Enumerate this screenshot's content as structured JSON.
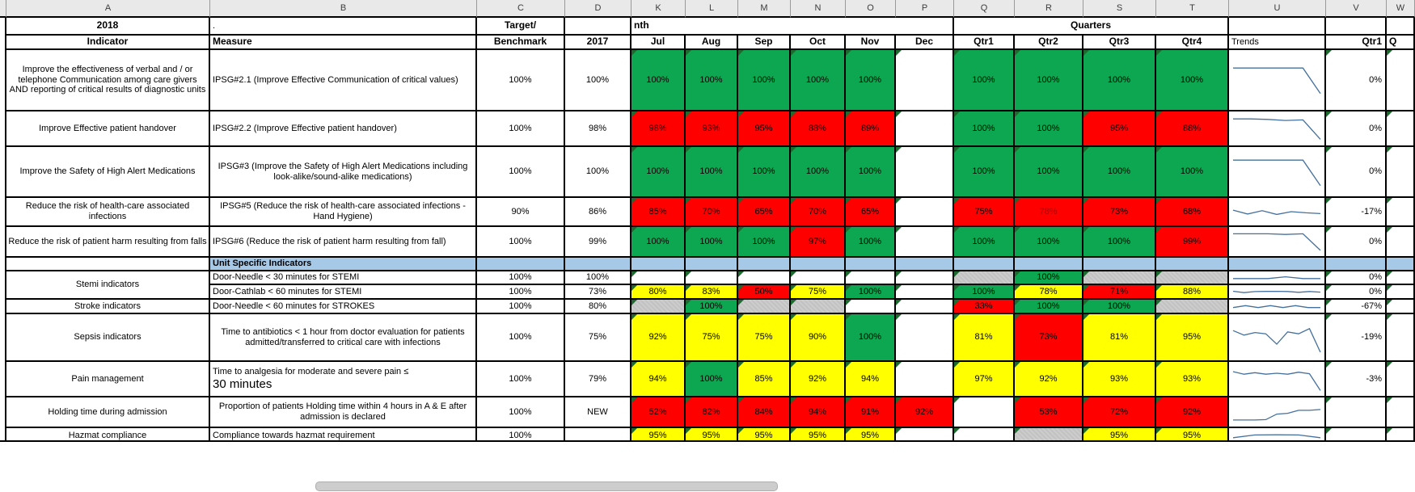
{
  "colors": {
    "pass_green": "#0CA750",
    "fail_red": "#FF0000",
    "warn_yellow": "#FFFF00",
    "na_gray": "#C6C6C6",
    "section_blue": "#A6C9E8",
    "sparkline_blue": "#44709D",
    "corner_flag_green": "#1E6B30"
  },
  "column_letters": [
    "",
    "A",
    "B",
    "C",
    "D",
    "K",
    "L",
    "M",
    "N",
    "O",
    "P",
    "Q",
    "R",
    "S",
    "T",
    "U",
    "V",
    "W"
  ],
  "band_row": {
    "year": "2018",
    "b_dot": ".",
    "target_line1": "Target/",
    "month_clip": "nth",
    "quarters": "Quarters"
  },
  "header_row": {
    "indicator": "Indicator",
    "measure": "Measure",
    "benchmark": "Benchmark",
    "year_prev": "2017",
    "months": [
      "Jul",
      "Aug",
      "Sep",
      "Oct",
      "Nov",
      "Dec"
    ],
    "quarters": [
      "Qtr1",
      "Qtr2",
      "Qtr3",
      "Qtr4"
    ],
    "trends": "Trends",
    "cmp_qtr1": "Qtr1",
    "cmp_next": "Q"
  },
  "rows": [
    {
      "indicator": "Improve the effectiveness of verbal and / or telephone Communication among care givers AND reporting of critical results of diagnostic units",
      "measure": "IPSG#2.1 (Improve Effective Communication of critical values)",
      "target": "100%",
      "prev": "100%",
      "months": [
        [
          "100%",
          "g"
        ],
        [
          "100%",
          "g"
        ],
        [
          "100%",
          "g"
        ],
        [
          "100%",
          "g"
        ],
        [
          "100%",
          "g"
        ],
        [
          "",
          "w"
        ]
      ],
      "quarters": [
        [
          "100%",
          "g"
        ],
        [
          "100%",
          "g"
        ],
        [
          "100%",
          "g"
        ],
        [
          "100%",
          "g"
        ]
      ],
      "trend": [
        87,
        87,
        87,
        87,
        87,
        8
      ],
      "cmp": "0%"
    },
    {
      "indicator": "Improve Effective patient handover",
      "measure": "IPSG#2.2 (Improve Effective patient handover)",
      "target": "100%",
      "prev": "98%",
      "months": [
        [
          "98%",
          "r"
        ],
        [
          "93%",
          "r"
        ],
        [
          "95%",
          "r"
        ],
        [
          "88%",
          "r"
        ],
        [
          "89%",
          "r"
        ],
        [
          "",
          "w"
        ]
      ],
      "quarters": [
        [
          "100%",
          "g"
        ],
        [
          "100%",
          "g"
        ],
        [
          "95%",
          "r"
        ],
        [
          "88%",
          "r"
        ]
      ],
      "trend": [
        87,
        87,
        85,
        81,
        83,
        8
      ],
      "cmp": "0%"
    },
    {
      "indicator": "Improve the Safety of High Alert Medications",
      "measure": "IPSG#3 (Improve the Safety of High Alert Medications including look-alike/sound-alike medications)",
      "target": "100%",
      "prev": "100%",
      "months": [
        [
          "100%",
          "g"
        ],
        [
          "100%",
          "g"
        ],
        [
          "100%",
          "g"
        ],
        [
          "100%",
          "g"
        ],
        [
          "100%",
          "g"
        ],
        [
          "",
          "w"
        ]
      ],
      "quarters": [
        [
          "100%",
          "g"
        ],
        [
          "100%",
          "g"
        ],
        [
          "100%",
          "g"
        ],
        [
          "100%",
          "g"
        ]
      ],
      "trend": [
        87,
        87,
        87,
        87,
        87,
        8
      ],
      "cmp": "0%"
    },
    {
      "indicator": "Reduce the risk  of health-care associated infections",
      "measure": "IPSG#5 (Reduce the risk  of health-care associated infections - Hand Hygiene)",
      "target": "90%",
      "prev": "86%",
      "months": [
        [
          "85%",
          "r"
        ],
        [
          "70%",
          "r"
        ],
        [
          "65%",
          "r"
        ],
        [
          "70%",
          "r"
        ],
        [
          "65%",
          "r"
        ],
        [
          "",
          "w"
        ]
      ],
      "quarters": [
        [
          "75%",
          "r"
        ],
        [
          "78%",
          "r",
          "m"
        ],
        [
          "73%",
          "r"
        ],
        [
          "68%",
          "r"
        ]
      ],
      "trend": [
        58,
        38,
        55,
        36,
        50,
        44,
        40
      ],
      "cmp": "-17%"
    },
    {
      "indicator": "Reduce the risk  of patient harm resulting from falls",
      "measure": "IPSG#6 (Reduce the risk  of patient harm resulting from fall)",
      "target": "100%",
      "prev": "99%",
      "months": [
        [
          "100%",
          "g"
        ],
        [
          "100%",
          "g"
        ],
        [
          "100%",
          "g"
        ],
        [
          "97%",
          "r"
        ],
        [
          "100%",
          "g"
        ],
        [
          "",
          "w"
        ]
      ],
      "quarters": [
        [
          "100%",
          "g"
        ],
        [
          "100%",
          "g"
        ],
        [
          "100%",
          "g"
        ],
        [
          "99%",
          "r"
        ]
      ],
      "trend": [
        87,
        87,
        87,
        84,
        87,
        8
      ],
      "cmp": "0%"
    },
    {
      "type": "section",
      "label": "Unit Specific Indicators"
    },
    {
      "indicator": "Stemi indicators",
      "indicator_span": 2,
      "measure": "Door-Needle < 30 minutes for STEMI",
      "target": "100%",
      "prev": "100%",
      "months": [
        [
          "",
          "w"
        ],
        [
          "",
          "w"
        ],
        [
          "",
          "w"
        ],
        [
          "",
          "w"
        ],
        [
          "",
          "w"
        ],
        [
          "",
          "w"
        ]
      ],
      "quarters": [
        [
          "",
          "gy"
        ],
        [
          "100%",
          "g"
        ],
        [
          "",
          "gy"
        ],
        [
          "",
          "gy"
        ]
      ],
      "trend": [
        25,
        25,
        25,
        68,
        25,
        25
      ],
      "cmp": "0%"
    },
    {
      "measure": "Door-Cathlab < 60 minutes for STEMI",
      "target": "100%",
      "prev": "73%",
      "months": [
        [
          "80%",
          "y"
        ],
        [
          "83%",
          "y"
        ],
        [
          "50%",
          "r"
        ],
        [
          "75%",
          "y"
        ],
        [
          "100%",
          "g"
        ],
        [
          "",
          "w"
        ]
      ],
      "quarters": [
        [
          "100%",
          "g"
        ],
        [
          "78%",
          "y"
        ],
        [
          "71%",
          "r"
        ],
        [
          "88%",
          "y"
        ]
      ],
      "trend": [
        58,
        30,
        52,
        55,
        57,
        54,
        37,
        54,
        40
      ],
      "cmp": "0%"
    },
    {
      "indicator": "Stroke indicators",
      "measure": "Door-Needle < 60 minutes for STROKES",
      "target": "100%",
      "prev": "80%",
      "months": [
        [
          "",
          "gy"
        ],
        [
          "100%",
          "g"
        ],
        [
          "",
          "gy"
        ],
        [
          "",
          "gy"
        ],
        [
          "",
          "w"
        ],
        [
          "",
          "w"
        ]
      ],
      "quarters": [
        [
          "33%",
          "r"
        ],
        [
          "100%",
          "g"
        ],
        [
          "100%",
          "g"
        ],
        [
          "",
          "gy"
        ]
      ],
      "trend": [
        22,
        62,
        22,
        62,
        22,
        62,
        22,
        22
      ],
      "cmp": "-67%"
    },
    {
      "indicator": "Sepsis indicators",
      "measure": "Time to antibiotics < 1 hour from doctor evaluation for patients admitted/transferred to critical care with infections",
      "target": "100%",
      "prev": "75%",
      "months": [
        [
          "92%",
          "y"
        ],
        [
          "75%",
          "y"
        ],
        [
          "75%",
          "y"
        ],
        [
          "90%",
          "y"
        ],
        [
          "100%",
          "g"
        ],
        [
          "",
          "w"
        ]
      ],
      "quarters": [
        [
          "81%",
          "y"
        ],
        [
          "73%",
          "r"
        ],
        [
          "81%",
          "y"
        ],
        [
          "95%",
          "y"
        ]
      ],
      "trend": [
        72,
        58,
        66,
        62,
        30,
        68,
        62,
        78,
        5
      ],
      "cmp": "-19%"
    },
    {
      "indicator": "Pain management",
      "measure": "Time to analgesia for moderate and severe pain ≤",
      "measure_line2": "30 minutes",
      "target": "100%",
      "prev": "79%",
      "months": [
        [
          "94%",
          "y"
        ],
        [
          "100%",
          "g"
        ],
        [
          "85%",
          "y"
        ],
        [
          "92%",
          "y"
        ],
        [
          "94%",
          "y"
        ],
        [
          "",
          "w"
        ]
      ],
      "quarters": [
        [
          "97%",
          "y"
        ],
        [
          "92%",
          "y"
        ],
        [
          "93%",
          "y"
        ],
        [
          "93%",
          "y"
        ]
      ],
      "trend": [
        78,
        68,
        74,
        68,
        72,
        68,
        76,
        70,
        5
      ],
      "cmp": "-3%"
    },
    {
      "indicator": "Holding time during admission",
      "measure": "Proportion of patients Holding time within 4 hours in A & E after admission is declared",
      "target": "100%",
      "prev": "NEW",
      "months": [
        [
          "52%",
          "r"
        ],
        [
          "82%",
          "r"
        ],
        [
          "84%",
          "r"
        ],
        [
          "94%",
          "r"
        ],
        [
          "91%",
          "r"
        ],
        [
          "92%",
          "r"
        ]
      ],
      "quarters": [
        [
          "",
          "w"
        ],
        [
          "53%",
          "r"
        ],
        [
          "72%",
          "r"
        ],
        [
          "92%",
          "r"
        ]
      ],
      "trend": [
        12,
        12,
        12,
        14,
        40,
        44,
        58,
        58,
        62
      ],
      "cmp": ""
    },
    {
      "indicator": "Hazmat compliance",
      "measure": "Compliance towards hazmat requirement",
      "target": "100%",
      "prev": "",
      "months": [
        [
          "95%",
          "y"
        ],
        [
          "95%",
          "y"
        ],
        [
          "95%",
          "y"
        ],
        [
          "95%",
          "y"
        ],
        [
          "95%",
          "y"
        ],
        [
          "",
          "w"
        ]
      ],
      "quarters": [
        [
          "",
          "w"
        ],
        [
          "",
          "gy"
        ],
        [
          "95%",
          "y"
        ],
        [
          "95%",
          "y"
        ]
      ],
      "trend": [
        15,
        58,
        60,
        58,
        15
      ],
      "cmp": ""
    }
  ]
}
